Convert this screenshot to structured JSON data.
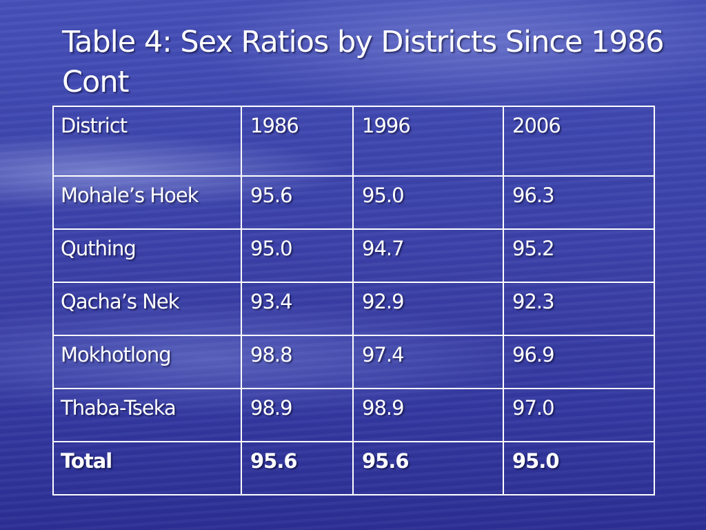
{
  "slide": {
    "title": "Table 4: Sex Ratios by Districts Since 1986 Cont"
  },
  "table": {
    "headers": [
      "District",
      "1986",
      "1996",
      "2006"
    ],
    "rows": [
      [
        "Mohale’s Hoek",
        "95.6",
        "95.0",
        "96.3"
      ],
      [
        "Quthing",
        "95.0",
        "94.7",
        "95.2"
      ],
      [
        "Qacha’s Nek",
        "93.4",
        "92.9",
        "92.3"
      ],
      [
        "Mokhotlong",
        "98.8",
        "97.4",
        "96.9"
      ],
      [
        "Thaba-Tseka",
        "98.9",
        "98.9",
        "97.0"
      ]
    ],
    "total": [
      "Total",
      "95.6",
      "95.6",
      "95.0"
    ]
  },
  "colors": {
    "background": "#3a3fa6",
    "text": "#ffffff",
    "grid": "#ffffff"
  }
}
